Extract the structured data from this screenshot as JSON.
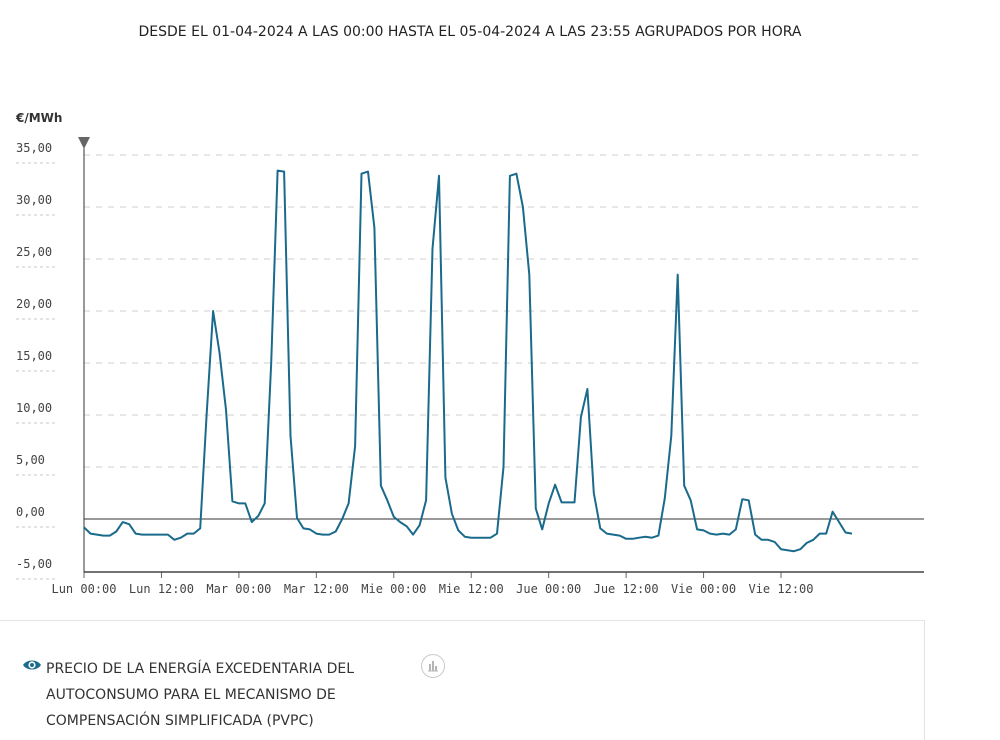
{
  "header": {
    "title": "DESDE EL 01-04-2024 A LAS 00:00 HASTA EL 05-04-2024 A LAS 23:55 AGRUPADOS POR HORA"
  },
  "legend": {
    "label": "PRECIO DE LA ENERGÍA EXCEDENTARIA DEL AUTOCONSUMO PARA EL MECANISMO DE COMPENSACIÓN SIMPLIFICADA (PVPC)",
    "eye_icon": "eye-icon",
    "chart_icon": "bar-chart-icon"
  },
  "chart_data": {
    "type": "line",
    "title": "",
    "ylabel": "€/MWh",
    "xlabel": "",
    "ylim": [
      -5,
      35
    ],
    "yticks": [
      -5,
      0,
      5,
      10,
      15,
      20,
      25,
      30,
      35
    ],
    "ytick_labels": [
      "-5,00",
      "0,00",
      "5,00",
      "10,00",
      "15,00",
      "20,00",
      "25,00",
      "30,00",
      "35,00"
    ],
    "xlim": [
      0,
      120
    ],
    "xticks": [
      0,
      12,
      24,
      36,
      48,
      60,
      72,
      84,
      96,
      108
    ],
    "xtick_labels": [
      "Lun 00:00",
      "Lun 12:00",
      "Mar 00:00",
      "Mar 12:00",
      "Mie 00:00",
      "Mie 12:00",
      "Jue 00:00",
      "Jue 12:00",
      "Vie 00:00",
      "Vie 12:00"
    ],
    "grid": true,
    "legend": "bottom",
    "color": "#1a6a8c",
    "series": [
      {
        "name": "PRECIO DE LA ENERGÍA EXCEDENTARIA DEL AUTOCONSUMO PARA EL MECANISMO DE COMPENSACIÓN SIMPLIFICADA (PVPC)",
        "x": [
          0,
          1,
          2,
          3,
          4,
          5,
          6,
          7,
          8,
          9,
          10,
          11,
          12,
          13,
          14,
          15,
          16,
          17,
          18,
          19,
          20,
          21,
          22,
          23,
          24,
          25,
          26,
          27,
          28,
          29,
          30,
          31,
          32,
          33,
          34,
          35,
          36,
          37,
          38,
          39,
          40,
          41,
          42,
          43,
          44,
          45,
          46,
          47,
          48,
          49,
          50,
          51,
          52,
          53,
          54,
          55,
          56,
          57,
          58,
          59,
          60,
          61,
          62,
          63,
          64,
          65,
          66,
          67,
          68,
          69,
          70,
          71,
          72,
          73,
          74,
          75,
          76,
          77,
          78,
          79,
          80,
          81,
          82,
          83,
          84,
          85,
          86,
          87,
          88,
          89,
          90,
          91,
          92,
          93,
          94,
          95,
          96,
          97,
          98,
          99,
          100,
          101,
          102,
          103,
          104,
          105,
          106,
          107,
          108,
          109,
          110,
          111,
          112,
          113,
          114,
          115,
          116,
          117,
          118,
          119
        ],
        "values": [
          -0.8,
          -1.4,
          -1.5,
          -1.6,
          -1.6,
          -1.2,
          -0.3,
          -0.5,
          -1.4,
          -1.5,
          -1.5,
          -1.5,
          -1.5,
          -1.5,
          -2.0,
          -1.8,
          -1.4,
          -1.4,
          -0.9,
          10.0,
          20.0,
          16.0,
          10.5,
          1.7,
          1.5,
          1.5,
          -0.3,
          0.3,
          1.5,
          15.0,
          33.5,
          33.4,
          8.0,
          0.1,
          -0.9,
          -1.0,
          -1.4,
          -1.5,
          -1.5,
          -1.2,
          0.0,
          1.5,
          7.0,
          33.2,
          33.4,
          28.0,
          3.2,
          1.8,
          0.2,
          -0.3,
          -0.7,
          -1.5,
          -0.6,
          1.8,
          26.0,
          33.0,
          4.0,
          0.5,
          -1.1,
          -1.7,
          -1.8,
          -1.8,
          -1.8,
          -1.8,
          -1.4,
          5.0,
          33.0,
          33.2,
          30.0,
          23.5,
          1.0,
          -1.0,
          1.5,
          3.3,
          1.6,
          1.6,
          1.6,
          9.8,
          12.5,
          2.5,
          -0.9,
          -1.4,
          -1.5,
          -1.6,
          -1.9,
          -1.9,
          -1.8,
          -1.7,
          -1.8,
          -1.6,
          2.0,
          8.0,
          23.5,
          3.2,
          1.8,
          -1.0,
          -1.1,
          -1.4,
          -1.5,
          -1.4,
          -1.5,
          -1.0,
          1.9,
          1.8,
          -1.5,
          -2.0,
          -2.0,
          -2.2,
          -2.9,
          -3.0,
          -3.1,
          -2.9,
          -2.3,
          -2.0,
          -1.4,
          -1.4,
          0.7,
          -0.3,
          -1.3,
          -1.4
        ]
      }
    ]
  }
}
